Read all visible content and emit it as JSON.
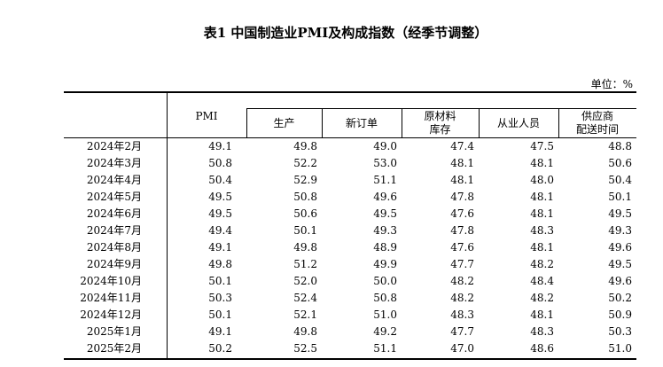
{
  "header": {
    "title": "表1 中国制造业PMI及构成指数（经季节调整）",
    "unit": "单位：%"
  },
  "table": {
    "columns": [
      [
        "PMI"
      ],
      [
        "生产"
      ],
      [
        "新订单"
      ],
      [
        "原材料",
        "库存"
      ],
      [
        "从业人员"
      ],
      [
        "供应商",
        "配送时间"
      ]
    ],
    "rows": [
      [
        "2024年2月",
        "49.1",
        "49.8",
        "49.0",
        "47.4",
        "47.5",
        "48.8"
      ],
      [
        "2024年3月",
        "50.8",
        "52.2",
        "53.0",
        "48.1",
        "48.1",
        "50.6"
      ],
      [
        "2024年4月",
        "50.4",
        "52.9",
        "51.1",
        "48.1",
        "48.0",
        "50.4"
      ],
      [
        "2024年5月",
        "49.5",
        "50.8",
        "49.6",
        "47.8",
        "48.1",
        "50.1"
      ],
      [
        "2024年6月",
        "49.5",
        "50.6",
        "49.5",
        "47.6",
        "48.1",
        "49.5"
      ],
      [
        "2024年7月",
        "49.4",
        "50.1",
        "49.3",
        "47.8",
        "48.3",
        "49.3"
      ],
      [
        "2024年8月",
        "49.1",
        "49.8",
        "48.9",
        "47.6",
        "48.1",
        "49.6"
      ],
      [
        "2024年9月",
        "49.8",
        "51.2",
        "49.9",
        "47.7",
        "48.2",
        "49.5"
      ],
      [
        "2024年10月",
        "50.1",
        "52.0",
        "50.0",
        "48.2",
        "48.4",
        "49.6"
      ],
      [
        "2024年11月",
        "50.3",
        "52.4",
        "50.8",
        "48.2",
        "48.2",
        "50.2"
      ],
      [
        "2024年12月",
        "50.1",
        "52.1",
        "51.0",
        "48.3",
        "48.1",
        "50.9"
      ],
      [
        "2025年1月",
        "49.1",
        "49.8",
        "49.2",
        "47.7",
        "48.3",
        "50.3"
      ],
      [
        "2025年2月",
        "50.2",
        "52.5",
        "51.1",
        "47.0",
        "48.6",
        "51.0"
      ]
    ]
  }
}
